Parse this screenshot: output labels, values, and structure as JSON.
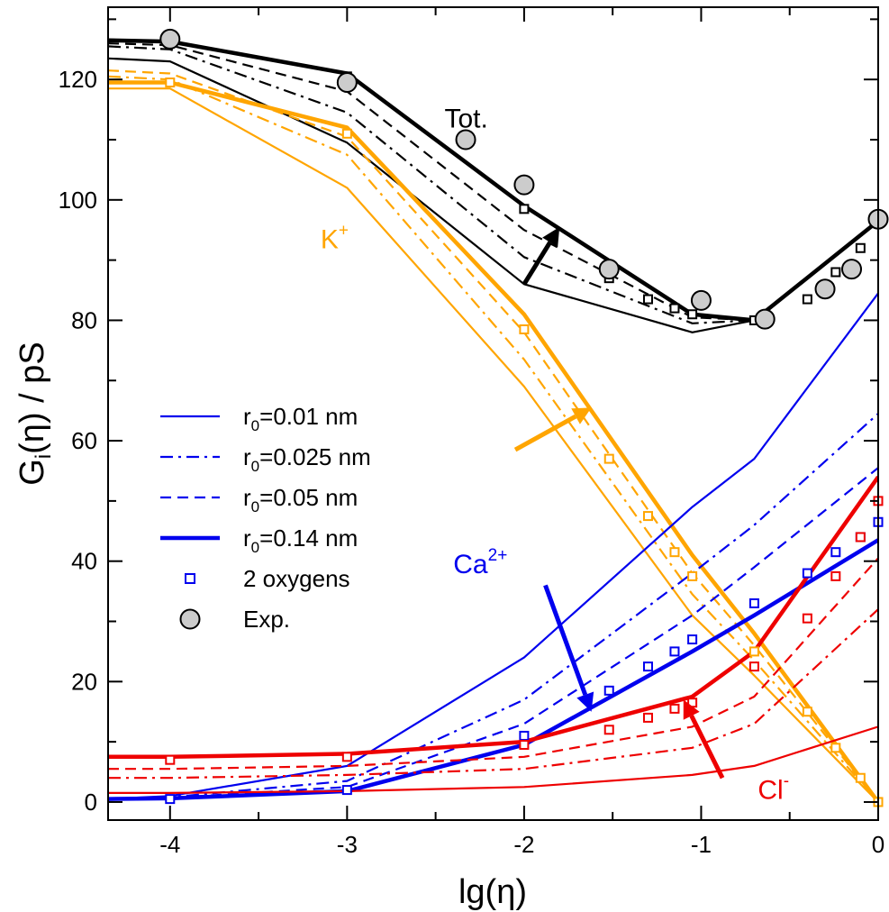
{
  "chart_data": {
    "type": "line",
    "title": "",
    "xlabel": "lg(η)",
    "ylabel": {
      "base": "G",
      "sub": "i",
      "rest": "(η) / pS"
    },
    "xlim": [
      -4.35,
      0
    ],
    "ylim": [
      -3,
      132
    ],
    "xticks": [
      -4,
      -3,
      -2,
      -1,
      0
    ],
    "xtick_labels": [
      "-4",
      "-3",
      "-2",
      "-1",
      "0"
    ],
    "yticks": [
      0,
      20,
      40,
      60,
      80,
      100,
      120
    ],
    "ytick_labels": [
      "0",
      "20",
      "40",
      "60",
      "80",
      "100",
      "120"
    ],
    "colors": {
      "tot": "#000000",
      "k": "#ffa500",
      "ca": "#0000ee",
      "cl": "#ee0000",
      "exp_fill": "#cccccc"
    },
    "x": [
      -4.35,
      -4,
      -3,
      -2,
      -1.05,
      -0.7,
      0
    ],
    "series": [
      {
        "group": "tot",
        "r0": "0.01 nm",
        "style": "solid",
        "values": [
          123.5,
          123.0,
          109.5,
          86.0,
          78.0,
          80.0,
          96.5
        ]
      },
      {
        "group": "tot",
        "r0": "0.025 nm",
        "style": "dashdot",
        "values": [
          125.5,
          125.0,
          114.5,
          90.5,
          79.5,
          80.0,
          96.5
        ]
      },
      {
        "group": "tot",
        "r0": "0.05 nm",
        "style": "dashed",
        "values": [
          126.0,
          125.7,
          118.0,
          95.0,
          80.5,
          80.0,
          96.5
        ]
      },
      {
        "group": "tot",
        "r0": "0.14 nm",
        "style": "thick",
        "values": [
          126.5,
          126.3,
          121.0,
          99.0,
          81.0,
          80.0,
          96.5
        ]
      },
      {
        "group": "k",
        "r0": "0.01 nm",
        "style": "solid",
        "values": [
          118.5,
          118.5,
          102.0,
          69.0,
          31.0,
          21.0,
          0.0
        ]
      },
      {
        "group": "k",
        "r0": "0.025 nm",
        "style": "dashdot",
        "values": [
          120.5,
          120.0,
          107.5,
          73.5,
          34.5,
          23.5,
          0.0
        ]
      },
      {
        "group": "k",
        "r0": "0.05 nm",
        "style": "dashed",
        "values": [
          121.5,
          121.0,
          110.5,
          78.0,
          38.0,
          26.0,
          0.0
        ]
      },
      {
        "group": "k",
        "r0": "0.14 nm",
        "style": "thick",
        "values": [
          119.5,
          119.5,
          112.0,
          81.0,
          41.0,
          28.0,
          0.0
        ]
      },
      {
        "group": "ca",
        "r0": "0.01 nm",
        "style": "solid",
        "values": [
          0.5,
          1.0,
          6.0,
          24.0,
          49.0,
          57.0,
          84.5
        ]
      },
      {
        "group": "ca",
        "r0": "0.025 nm",
        "style": "dashdot",
        "values": [
          0.5,
          0.8,
          3.5,
          17.0,
          38.0,
          46.0,
          64.5
        ]
      },
      {
        "group": "ca",
        "r0": "0.05 nm",
        "style": "dashed",
        "values": [
          0.5,
          0.7,
          2.5,
          13.0,
          31.0,
          39.0,
          55.5
        ]
      },
      {
        "group": "ca",
        "r0": "0.14 nm",
        "style": "thick",
        "values": [
          0.5,
          0.6,
          1.8,
          9.5,
          25.0,
          31.0,
          43.5
        ]
      },
      {
        "group": "cl",
        "r0": "0.01 nm",
        "style": "solid",
        "values": [
          1.5,
          1.5,
          1.8,
          2.5,
          4.5,
          6.0,
          12.5
        ]
      },
      {
        "group": "cl",
        "r0": "0.025 nm",
        "style": "dashdot",
        "values": [
          4.0,
          4.0,
          4.5,
          5.5,
          9.0,
          13.0,
          32.0
        ]
      },
      {
        "group": "cl",
        "r0": "0.05 nm",
        "style": "dashed",
        "values": [
          5.5,
          5.5,
          6.0,
          7.5,
          12.5,
          17.5,
          40.5
        ]
      },
      {
        "group": "cl",
        "r0": "0.14 nm",
        "style": "thick",
        "values": [
          7.5,
          7.5,
          8.0,
          10.0,
          17.5,
          25.0,
          54.0
        ]
      }
    ],
    "squares": {
      "tot": {
        "x": [
          -4,
          -3,
          -2,
          -1.52,
          -1.3,
          -1.15,
          -1.05,
          -0.7,
          -0.4,
          -0.24,
          -0.1
        ],
        "y": [
          126.5,
          120.5,
          98.5,
          87.0,
          83.5,
          82.0,
          81.0,
          80.0,
          83.5,
          88.0,
          92.0
        ]
      },
      "k": {
        "x": [
          -4,
          -3,
          -2,
          -1.52,
          -1.3,
          -1.15,
          -1.05,
          -0.7,
          -0.4,
          -0.24,
          -0.1,
          0
        ],
        "y": [
          119.5,
          111.0,
          78.5,
          57.0,
          47.5,
          41.5,
          37.5,
          25.0,
          15.0,
          9.0,
          4.0,
          0.0
        ]
      },
      "ca": {
        "x": [
          -4,
          -3,
          -2,
          -1.52,
          -1.3,
          -1.15,
          -1.05,
          -0.7,
          -0.4,
          -0.24,
          -0.1,
          0
        ],
        "y": [
          0.5,
          2.0,
          11.0,
          18.5,
          22.5,
          25.0,
          27.0,
          33.0,
          38.0,
          41.5,
          44.0,
          46.5
        ]
      },
      "cl": {
        "x": [
          -4,
          -3,
          -2,
          -1.52,
          -1.3,
          -1.15,
          -1.05,
          -0.7,
          -0.4,
          -0.24,
          -0.1,
          0
        ],
        "y": [
          7.0,
          7.5,
          9.5,
          12.0,
          14.0,
          15.5,
          16.5,
          22.5,
          30.5,
          37.5,
          44.0,
          50.0
        ]
      }
    },
    "exp": {
      "x": [
        -4,
        -3,
        -2.33,
        -2,
        -1.52,
        -1,
        -0.64,
        -0.3,
        -0.15,
        0
      ],
      "y": [
        126.7,
        119.5,
        110.0,
        102.5,
        88.5,
        83.3,
        80.2,
        85.2,
        88.5,
        96.8
      ]
    },
    "arrows": [
      {
        "color": "tot",
        "from": [
          -2,
          86.0
        ],
        "to": [
          -1.8,
          95.5
        ]
      },
      {
        "color": "k",
        "from": [
          -2.05,
          58.5
        ],
        "to": [
          -1.62,
          65.5
        ]
      },
      {
        "color": "ca",
        "from": [
          -1.88,
          36.0
        ],
        "to": [
          -1.62,
          15.0
        ]
      },
      {
        "color": "cl",
        "from": [
          -0.88,
          4.0
        ],
        "to": [
          -1.1,
          17.0
        ]
      }
    ],
    "annotations": [
      {
        "id": "tot",
        "text": "Tot.",
        "sup": "",
        "color": "tot",
        "x": -2.45,
        "y": 112
      },
      {
        "id": "k",
        "text": "K",
        "sup": "+",
        "color": "k",
        "x": -3.15,
        "y": 92
      },
      {
        "id": "ca",
        "text": "Ca",
        "sup": "2+",
        "color": "ca",
        "x": -2.4,
        "y": 38
      },
      {
        "id": "cl",
        "text": "Cl",
        "sup": "-",
        "color": "cl",
        "x": -0.68,
        "y": 0.5
      }
    ],
    "legend": {
      "position": "center-left",
      "entries": [
        {
          "label": "r",
          "sub": "0",
          "rest": "=0.01 nm",
          "style": "solid"
        },
        {
          "label": "r",
          "sub": "0",
          "rest": "=0.025 nm",
          "style": "dashdot"
        },
        {
          "label": "r",
          "sub": "0",
          "rest": "=0.05 nm",
          "style": "dashed"
        },
        {
          "label": "r",
          "sub": "0",
          "rest": "=0.14 nm",
          "style": "thick"
        },
        {
          "label": "2 oxygens",
          "sub": "",
          "rest": "",
          "style": "square"
        },
        {
          "label": "Exp.",
          "sub": "",
          "rest": "",
          "style": "circle"
        }
      ]
    }
  }
}
